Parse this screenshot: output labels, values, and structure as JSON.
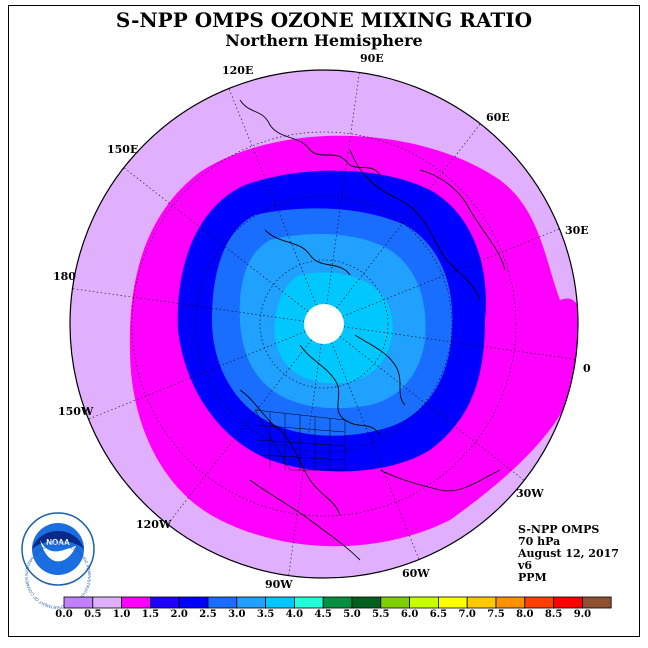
{
  "title": "S-NPP OMPS OZONE MIXING RATIO",
  "subtitle": "Northern Hemisphere",
  "longitude_labels": [
    {
      "text": "90E"
    },
    {
      "text": "60E"
    },
    {
      "text": "30E"
    },
    {
      "text": "0"
    },
    {
      "text": "30W"
    },
    {
      "text": "60W"
    },
    {
      "text": "90W"
    },
    {
      "text": "120W"
    },
    {
      "text": "150W"
    },
    {
      "text": "180"
    },
    {
      "text": "150E"
    },
    {
      "text": "120E"
    }
  ],
  "info": {
    "instrument": "S-NPP OMPS",
    "level": "70 hPa",
    "date": "August 12, 2017",
    "version": "v6",
    "units": "PPM"
  },
  "logo": {
    "text": "NOAA",
    "ring_text": "NATIONAL OCEANIC AND ATMOSPHERIC ADMINISTRATION · U.S. DEPARTMENT OF COMMERCE"
  },
  "colorbar": {
    "labels": [
      "0.0",
      "0.5",
      "1.0",
      "1.5",
      "2.0",
      "2.5",
      "3.0",
      "3.5",
      "4.0",
      "4.5",
      "5.0",
      "5.5",
      "6.0",
      "6.5",
      "7.0",
      "7.5",
      "8.0",
      "8.5",
      "9.0"
    ],
    "colors": [
      "#c080ff",
      "#e0b0ff",
      "#ff00ff",
      "#2000ff",
      "#0000ff",
      "#1a6eff",
      "#20a0ff",
      "#00c8ff",
      "#20ffd8",
      "#009040",
      "#006020",
      "#80d000",
      "#c8ff00",
      "#ffff00",
      "#ffc800",
      "#ff9000",
      "#ff4000",
      "#ff0000",
      "#905030"
    ]
  },
  "map_colors": {
    "outer": "#e0b0ff",
    "magenta": "#ff00ff",
    "band": "#0000ff",
    "mid": "#1a6eff",
    "inner": "#20a0ff",
    "core": "#00c8ff",
    "pole": "#ffffff"
  }
}
